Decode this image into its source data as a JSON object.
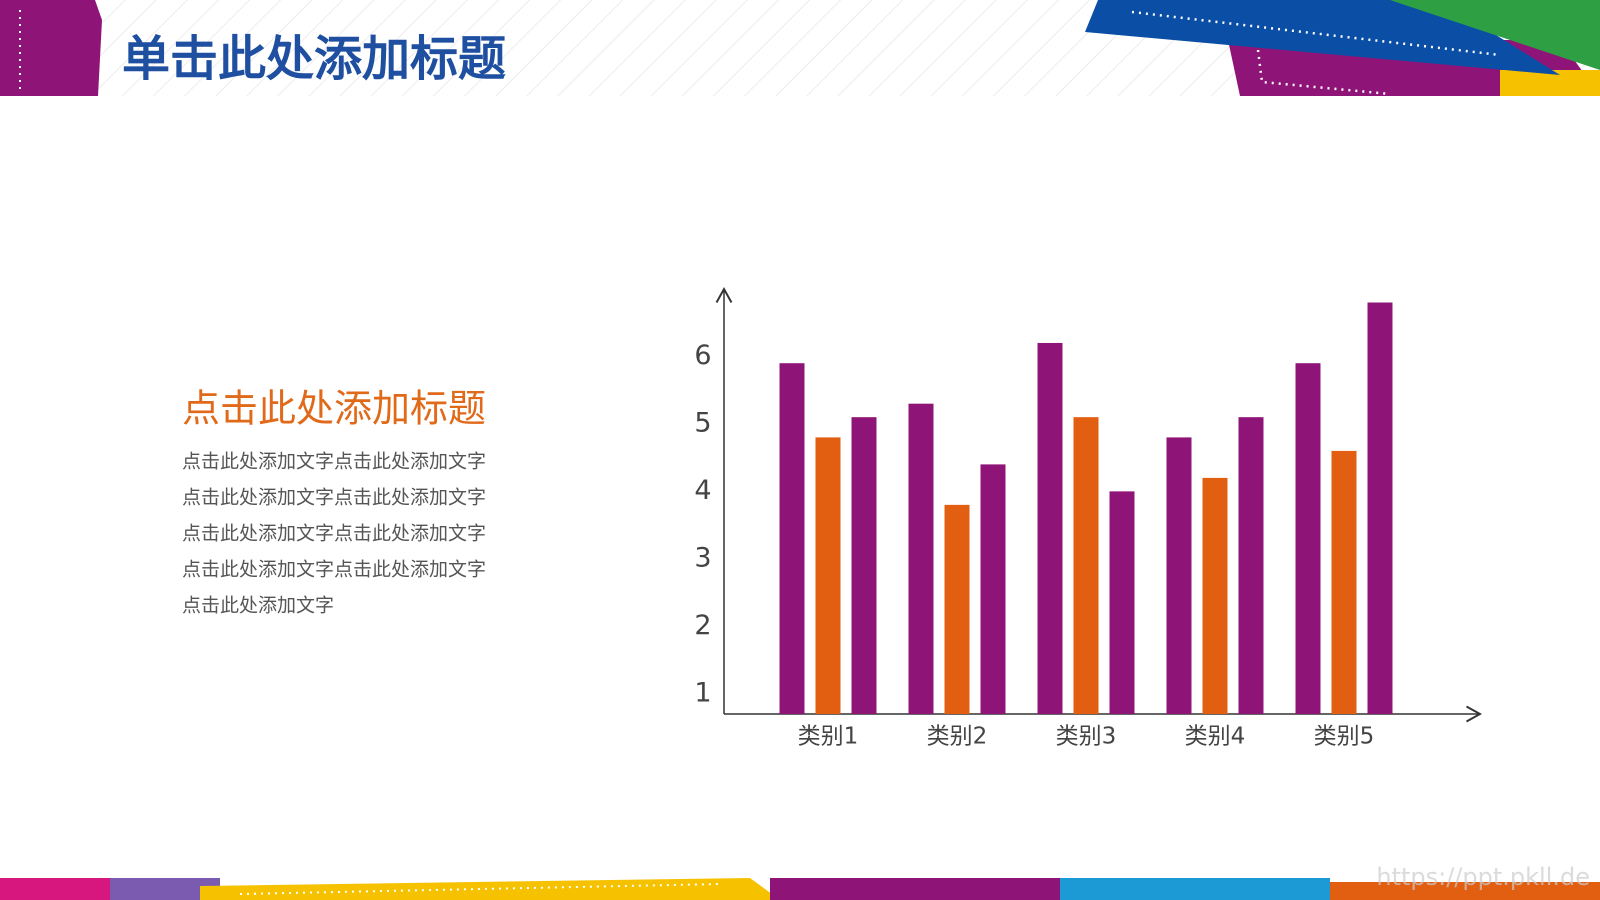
{
  "slide": {
    "title": "单击此处添加标题",
    "subtitle": "点击此处添加标题",
    "body_lines": [
      "点击此处添加文字点击此处添加文字",
      "点击此处添加文字点击此处添加文字",
      "点击此处添加文字点击此处添加文字",
      "点击此处添加文字点击此处添加文字",
      "点击此处添加文字"
    ],
    "watermark": "https://ppt.pkll.de"
  },
  "chart_data": {
    "type": "bar",
    "categories": [
      "类别1",
      "类别2",
      "类别3",
      "类别4",
      "类别5"
    ],
    "series": [
      {
        "color": "#8f1477",
        "values": [
          5.9,
          5.3,
          6.2,
          4.8,
          5.9
        ]
      },
      {
        "color": "#e25f12",
        "values": [
          4.8,
          3.8,
          5.1,
          4.2,
          4.6
        ]
      },
      {
        "color": "#8f1477",
        "values": [
          5.1,
          4.4,
          4.0,
          5.1,
          6.8
        ]
      }
    ],
    "ylim": [
      0.7,
      7
    ],
    "yticks": [
      1,
      2,
      3,
      4,
      5,
      6
    ],
    "grid": false
  }
}
